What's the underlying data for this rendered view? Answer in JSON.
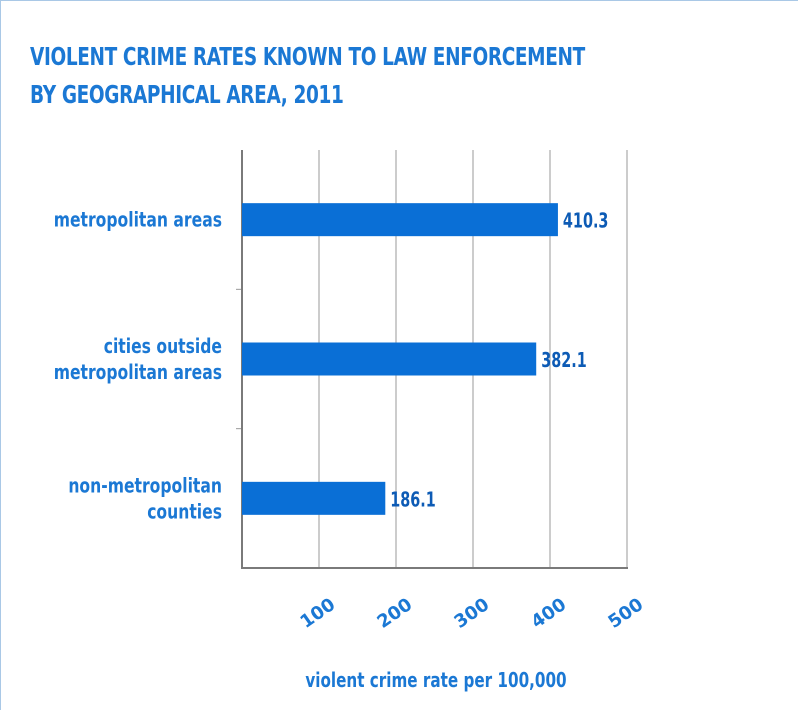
{
  "title_lines": [
    "VIOLENT CRIME RATES KNOWN TO LAW ENFORCEMENT",
    "BY GEOGRAPHICAL AREA, 2011"
  ],
  "colors": {
    "bar": "#0a6fd6",
    "label": "#1b78d4",
    "value": "#0d5bb5",
    "grid": "#9a9a9a",
    "axis": "#7a7a7a"
  },
  "chart_data": {
    "type": "bar",
    "orientation": "horizontal",
    "title": "VIOLENT CRIME RATES KNOWN TO LAW ENFORCEMENT BY GEOGRAPHICAL AREA, 2011",
    "categories": [
      [
        "metropolitan areas"
      ],
      [
        "cities outside",
        "metropolitan areas"
      ],
      [
        "non-metropolitan",
        "counties"
      ]
    ],
    "values": [
      410.3,
      382.1,
      186.1
    ],
    "value_labels": [
      "410.3",
      "382.1",
      "186.1"
    ],
    "xticks": [
      100,
      200,
      300,
      400,
      500
    ],
    "xlim": [
      0,
      500
    ],
    "xlabel": "violent crime rate per 100,000",
    "ylabel": "",
    "grid": true,
    "legend": "none"
  }
}
